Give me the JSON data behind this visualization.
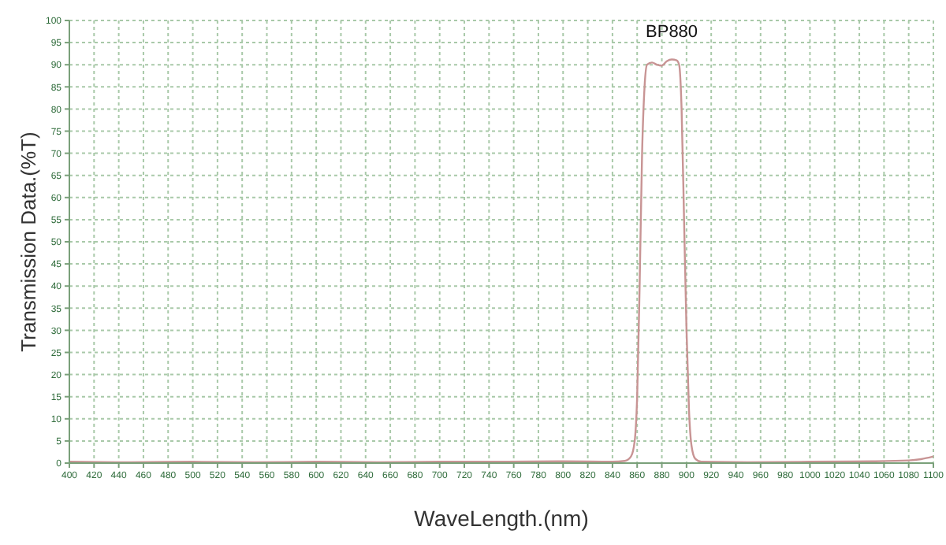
{
  "chart_data": {
    "type": "line",
    "xlabel": "WaveLength.(nm)",
    "ylabel": "Transmission Data.(%T)",
    "xlim": [
      400,
      1100
    ],
    "xticks": [
      400,
      420,
      440,
      460,
      480,
      500,
      520,
      540,
      560,
      580,
      600,
      620,
      640,
      660,
      680,
      700,
      720,
      740,
      760,
      780,
      800,
      820,
      840,
      860,
      880,
      900,
      920,
      940,
      960,
      980,
      1000,
      1020,
      1040,
      1060,
      1080,
      1100
    ],
    "ylim": [
      0,
      100
    ],
    "yticks": [
      0,
      5,
      10,
      15,
      20,
      25,
      30,
      35,
      40,
      45,
      50,
      55,
      60,
      65,
      70,
      75,
      80,
      85,
      90,
      95,
      100
    ],
    "grid": true,
    "marker": "none",
    "line_style": "solid",
    "series": [
      {
        "name": "BP880",
        "color": "#c89494",
        "x": [
          400,
          450,
          500,
          550,
          600,
          650,
          700,
          750,
          800,
          840,
          850,
          855,
          858,
          860,
          862,
          864,
          866,
          868,
          872,
          876,
          880,
          884,
          888,
          892,
          894,
          896,
          898,
          900,
          902,
          904,
          907,
          912,
          950,
          1000,
          1050,
          1080,
          1090,
          1100
        ],
        "values": [
          0.3,
          0.2,
          0.3,
          0.2,
          0.3,
          0.2,
          0.3,
          0.3,
          0.4,
          0.3,
          0.5,
          1.5,
          5,
          15,
          40,
          70,
          85,
          90,
          90.5,
          90,
          89.8,
          90.8,
          91.2,
          91,
          90,
          80,
          55,
          30,
          12,
          4,
          1,
          0.3,
          0.2,
          0.3,
          0.4,
          0.6,
          0.9,
          1.5
        ]
      }
    ]
  }
}
